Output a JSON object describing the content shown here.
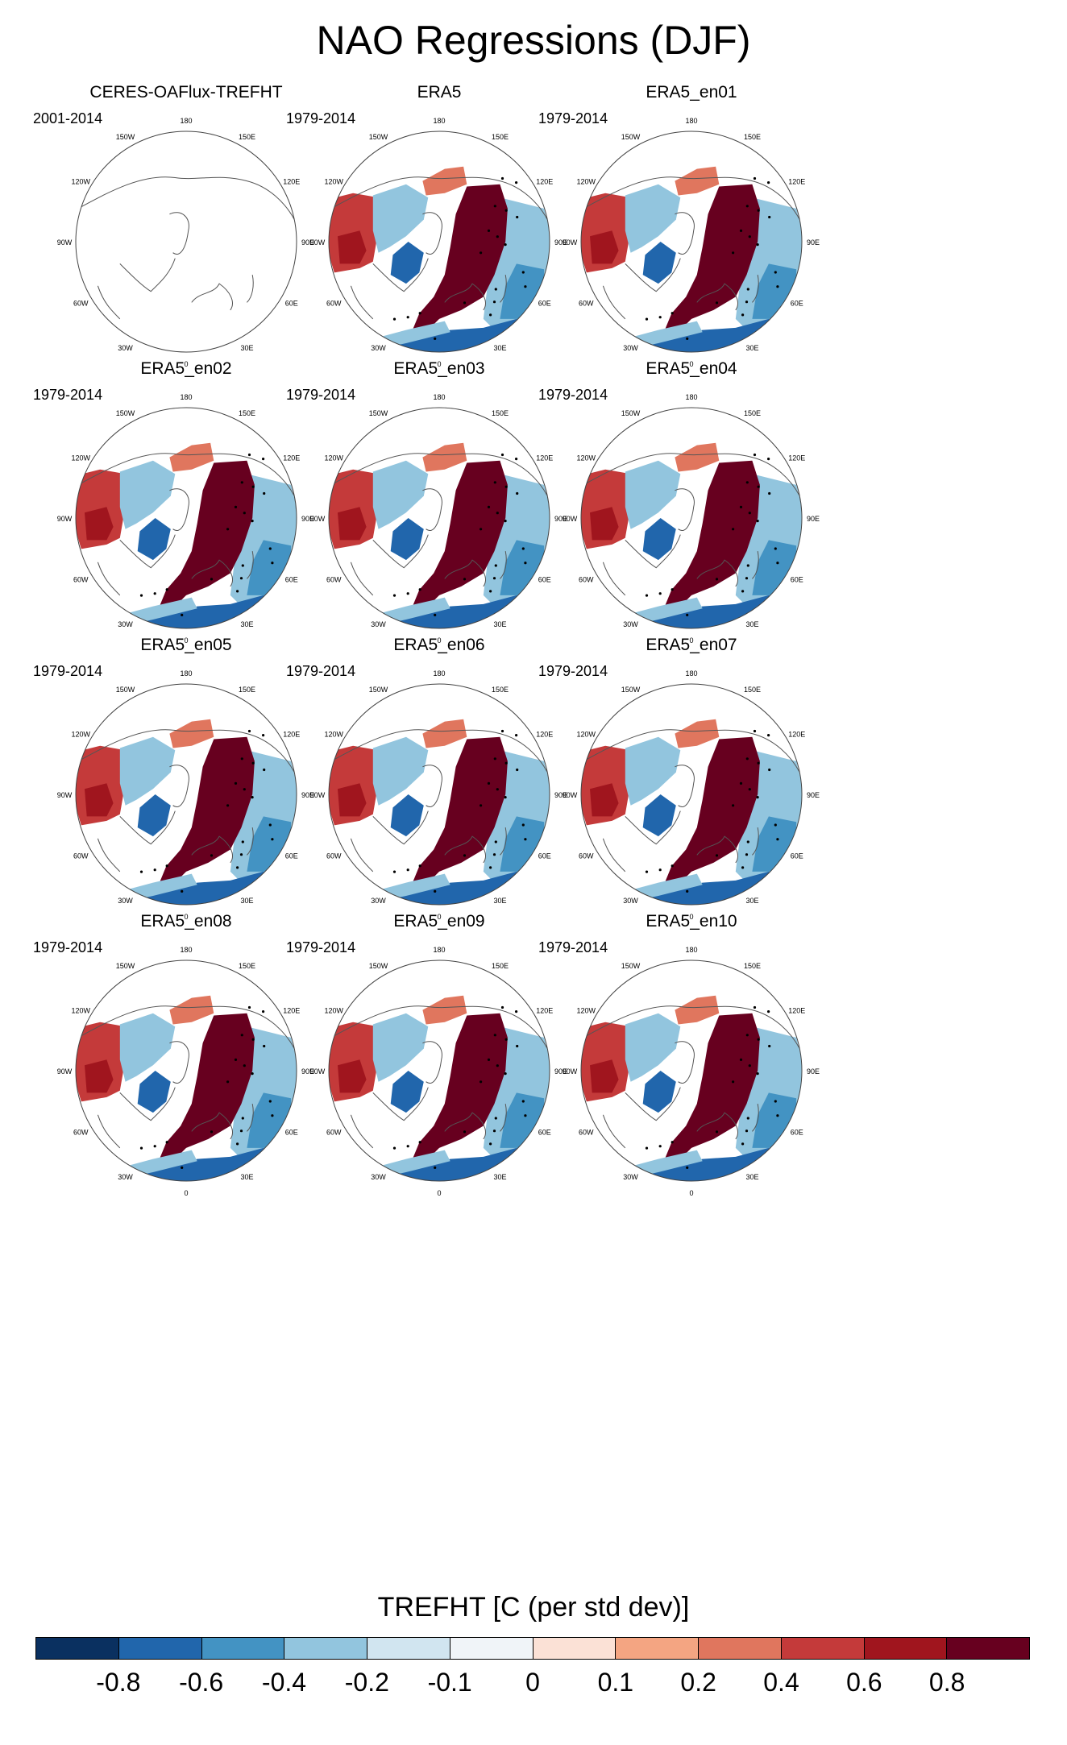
{
  "title": "NAO Regressions (DJF)",
  "chart_data": {
    "type": "heatmap",
    "projection": "north-polar-stereographic",
    "layout": "4x3 grid",
    "longitude_labels": [
      "180",
      "150E",
      "120E",
      "90E",
      "60E",
      "30E",
      "0",
      "30W",
      "60W",
      "90W",
      "120W",
      "150W"
    ],
    "panels": [
      {
        "title": "CERES-OAFlux-TREFHT",
        "period": "2001-2014",
        "has_data": false
      },
      {
        "title": "ERA5",
        "period": "1979-2014",
        "has_data": true
      },
      {
        "title": "ERA5_en01",
        "period": "1979-2014",
        "has_data": true
      },
      {
        "title": "ERA5_en02",
        "period": "1979-2014",
        "has_data": true
      },
      {
        "title": "ERA5_en03",
        "period": "1979-2014",
        "has_data": true
      },
      {
        "title": "ERA5_en04",
        "period": "1979-2014",
        "has_data": true
      },
      {
        "title": "ERA5_en05",
        "period": "1979-2014",
        "has_data": true
      },
      {
        "title": "ERA5_en06",
        "period": "1979-2014",
        "has_data": true
      },
      {
        "title": "ERA5_en07",
        "period": "1979-2014",
        "has_data": true
      },
      {
        "title": "ERA5_en08",
        "period": "1979-2014",
        "has_data": true
      },
      {
        "title": "ERA5_en09",
        "period": "1979-2014",
        "has_data": true
      },
      {
        "title": "ERA5_en10",
        "period": "1979-2014",
        "has_data": true
      }
    ],
    "pattern_summary": {
      "eurasia_north_europe": 0.8,
      "north_africa_middle_east": -0.8,
      "greenland_labrador": -0.8,
      "north_america_central": 0.4,
      "east_asia": -0.4
    },
    "colorbar": {
      "title": "TREFHT [C (per std dev)]",
      "levels": [
        "-0.8",
        "-0.6",
        "-0.4",
        "-0.2",
        "-0.1",
        "0",
        "0.1",
        "0.2",
        "0.4",
        "0.6",
        "0.8"
      ],
      "colors": [
        "#0a3060",
        "#2166ac",
        "#4393c3",
        "#92c5de",
        "#d1e5f0",
        "#f0f4f8",
        "#fbe1d6",
        "#f4a582",
        "#e0765e",
        "#c43a3a",
        "#a0151e",
        "#67001f"
      ]
    }
  }
}
